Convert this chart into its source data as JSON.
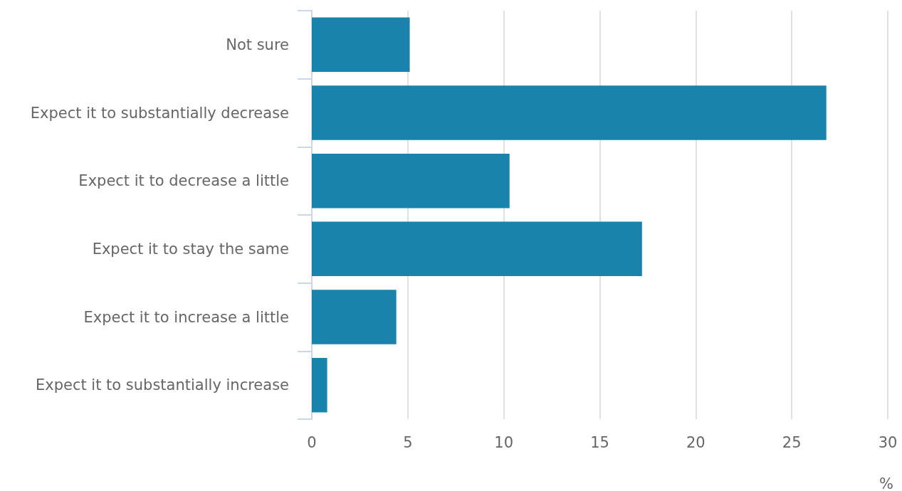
{
  "chart_data": {
    "type": "bar",
    "orientation": "horizontal",
    "xlabel": "%",
    "categories": [
      "Not sure",
      "Expect it to substantially decrease",
      "Expect it to decrease a little",
      "Expect it to stay the same",
      "Expect it to increase a little",
      "Expect it to substantially increase"
    ],
    "values": [
      5.1,
      26.8,
      10.3,
      17.2,
      4.4,
      0.8
    ],
    "color": "#1a83ab",
    "xlim": [
      0,
      30
    ],
    "xticks": [
      0,
      5,
      10,
      15,
      20,
      25,
      30
    ],
    "grid": "x"
  }
}
